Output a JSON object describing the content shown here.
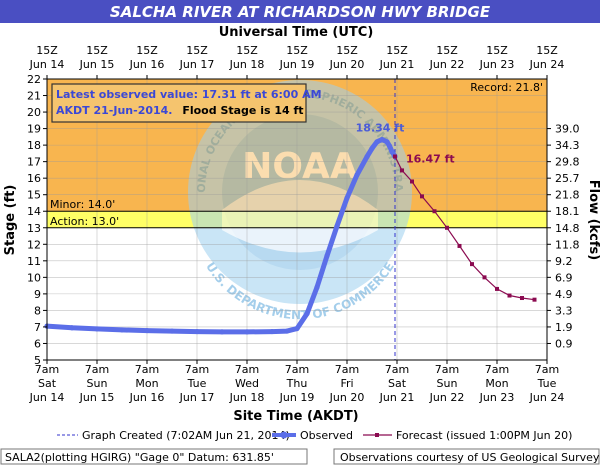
{
  "chart_data": {
    "type": "line",
    "title": "SALCHA RIVER AT RICHARDSON HWY BRIDGE",
    "top_axis_label": "Universal Time (UTC)",
    "top_ticks": [
      {
        "t": "15Z",
        "d": "Jun 14"
      },
      {
        "t": "15Z",
        "d": "Jun 15"
      },
      {
        "t": "15Z",
        "d": "Jun 16"
      },
      {
        "t": "15Z",
        "d": "Jun 17"
      },
      {
        "t": "15Z",
        "d": "Jun 18"
      },
      {
        "t": "15Z",
        "d": "Jun 19"
      },
      {
        "t": "15Z",
        "d": "Jun 20"
      },
      {
        "t": "15Z",
        "d": "Jun 21"
      },
      {
        "t": "15Z",
        "d": "Jun 22"
      },
      {
        "t": "15Z",
        "d": "Jun 23"
      },
      {
        "t": "15Z",
        "d": "Jun 24"
      }
    ],
    "xlabel": "Site Time (AKDT)",
    "bottom_ticks": [
      {
        "t": "7am",
        "w": "Sat",
        "d": "Jun 14"
      },
      {
        "t": "7am",
        "w": "Sun",
        "d": "Jun 15"
      },
      {
        "t": "7am",
        "w": "Mon",
        "d": "Jun 16"
      },
      {
        "t": "7am",
        "w": "Tue",
        "d": "Jun 17"
      },
      {
        "t": "7am",
        "w": "Wed",
        "d": "Jun 18"
      },
      {
        "t": "7am",
        "w": "Thu",
        "d": "Jun 19"
      },
      {
        "t": "7am",
        "w": "Fri",
        "d": "Jun 20"
      },
      {
        "t": "7am",
        "w": "Sat",
        "d": "Jun 21"
      },
      {
        "t": "7am",
        "w": "Sun",
        "d": "Jun 22"
      },
      {
        "t": "7am",
        "w": "Mon",
        "d": "Jun 23"
      },
      {
        "t": "7am",
        "w": "Tue",
        "d": "Jun 24"
      }
    ],
    "ylabel": "Stage (ft)",
    "ylim": [
      5,
      22
    ],
    "y_ticks": [
      5,
      6,
      7,
      8,
      9,
      10,
      11,
      12,
      13,
      14,
      15,
      16,
      17,
      18,
      19,
      20,
      21,
      22
    ],
    "y2label": "Flow (kcfs)",
    "flow_ticks": [
      {
        "stage": 6,
        "label": "0.9"
      },
      {
        "stage": 7,
        "label": "1.9"
      },
      {
        "stage": 8,
        "label": "3.3"
      },
      {
        "stage": 9,
        "label": "4.9"
      },
      {
        "stage": 10,
        "label": "6.9"
      },
      {
        "stage": 11,
        "label": "9.2"
      },
      {
        "stage": 12,
        "label": "11.8"
      },
      {
        "stage": 13,
        "label": "14.8"
      },
      {
        "stage": 14,
        "label": "18.1"
      },
      {
        "stage": 15,
        "label": "21.8"
      },
      {
        "stage": 16,
        "label": "25.7"
      },
      {
        "stage": 17,
        "label": "29.8"
      },
      {
        "stage": 18,
        "label": "34.3"
      },
      {
        "stage": 19,
        "label": "39.0"
      }
    ],
    "xlim_days": [
      0,
      10
    ],
    "flood_stage": 14.0,
    "action_stage": 13.0,
    "minor_label": "Minor: 14.0'",
    "action_label": "Action: 13.0'",
    "record_label": "Record: 21.8'",
    "info_line1": "Latest observed value: 17.31 ft at 6:00 AM",
    "info_line2a": "AKDT 21-Jun-2014.",
    "info_line2b": "Flood Stage is 14 ft",
    "peak_label": "18.34 ft",
    "forecast_label": "16.47 ft",
    "created_day": 6.96,
    "colors": {
      "flood_zone": "#f8b54f",
      "action_zone": "#ffff66",
      "observed": "#5b6ee8",
      "forecast": "#8b0a50",
      "created_line": "#3333cc",
      "title_bg": "#4a4fc2",
      "info_text": "#3b48d6",
      "info_bg": "#f5c46e",
      "noaa_logo": "#6aaede"
    },
    "series": [
      {
        "name": "Observed",
        "x": [
          0,
          0.5,
          1,
          1.5,
          2,
          2.5,
          3,
          3.5,
          4,
          4.5,
          4.8,
          5.0,
          5.2,
          5.4,
          5.6,
          5.8,
          6.0,
          6.2,
          6.4,
          6.5,
          6.6,
          6.7,
          6.8,
          6.85,
          6.9,
          6.96
        ],
        "y": [
          7.05,
          6.95,
          6.88,
          6.82,
          6.78,
          6.75,
          6.72,
          6.7,
          6.7,
          6.72,
          6.75,
          6.9,
          7.8,
          9.4,
          11.3,
          13.1,
          14.8,
          16.2,
          17.3,
          17.8,
          18.2,
          18.34,
          18.2,
          17.95,
          17.6,
          17.31
        ]
      },
      {
        "name": "Forecast (issued 1:00PM Jun 20)",
        "x": [
          6.96,
          7.1,
          7.3,
          7.5,
          7.75,
          8.0,
          8.25,
          8.5,
          8.75,
          9.0,
          9.25,
          9.5,
          9.75
        ],
        "y": [
          17.31,
          16.47,
          15.8,
          14.9,
          14.0,
          13.0,
          11.9,
          10.8,
          10.0,
          9.3,
          8.9,
          8.75,
          8.65
        ]
      }
    ],
    "legend": {
      "created": "Graph Created (7:02AM Jun 21, 2014)",
      "observed": "Observed",
      "forecast": "Forecast (issued 1:00PM Jun 20)"
    }
  },
  "footer": {
    "left": "SALA2(plotting HGIRG) \"Gage 0\" Datum: 631.85'",
    "right": "Observations courtesy of US Geological Survey"
  },
  "watermark": {
    "arc_top": "NATIONAL OCEANIC AND ATMOSPHERIC ADMINISTRATION",
    "arc_bottom": "U.S. DEPARTMENT OF COMMERCE",
    "logo": "NOAA"
  }
}
